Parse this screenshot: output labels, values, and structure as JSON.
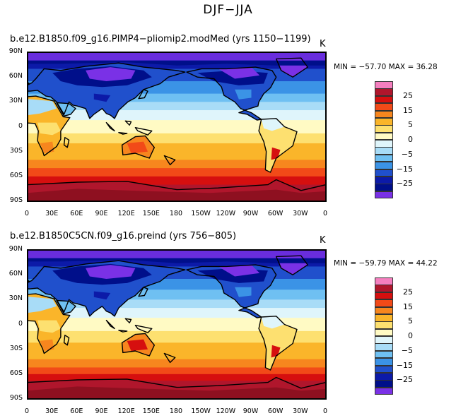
{
  "title": "DJF−JJA",
  "panels": [
    {
      "subtitle": "b.e12.B1850.f09_g16.PIMP4−pliomip2.modMed (yrs 1150−1199)",
      "units": "K",
      "min_max": "MIN = −57.70 MAX =  36.28",
      "min": -57.7,
      "max": 36.28
    },
    {
      "subtitle": "b.e12.B1850C5CN.f09_g16.preind (yrs 756−805)",
      "units": "K",
      "min_max": "MIN = −59.79 MAX =  44.22",
      "min": -59.79,
      "max": 44.22
    }
  ],
  "lat_labels": [
    "90N",
    "60N",
    "30N",
    "0",
    "30S",
    "60S",
    "90S"
  ],
  "lon_labels": [
    "0",
    "30E",
    "60E",
    "90E",
    "120E",
    "150E",
    "180",
    "150W",
    "120W",
    "90W",
    "60W",
    "30W",
    "0"
  ],
  "colorbar": {
    "labels": [
      "25",
      "15",
      "5",
      "0",
      "−5",
      "−15",
      "−25"
    ],
    "colors": [
      "#f57fbf",
      "#b0162c",
      "#d60f0f",
      "#f24a18",
      "#f7861e",
      "#fab52a",
      "#fde070",
      "#fffac4",
      "#dff5fb",
      "#a8dcf7",
      "#6fc0f2",
      "#3b93e6",
      "#2050cc",
      "#0c1aa8",
      "#000f8a",
      "#7a31e6"
    ]
  }
}
